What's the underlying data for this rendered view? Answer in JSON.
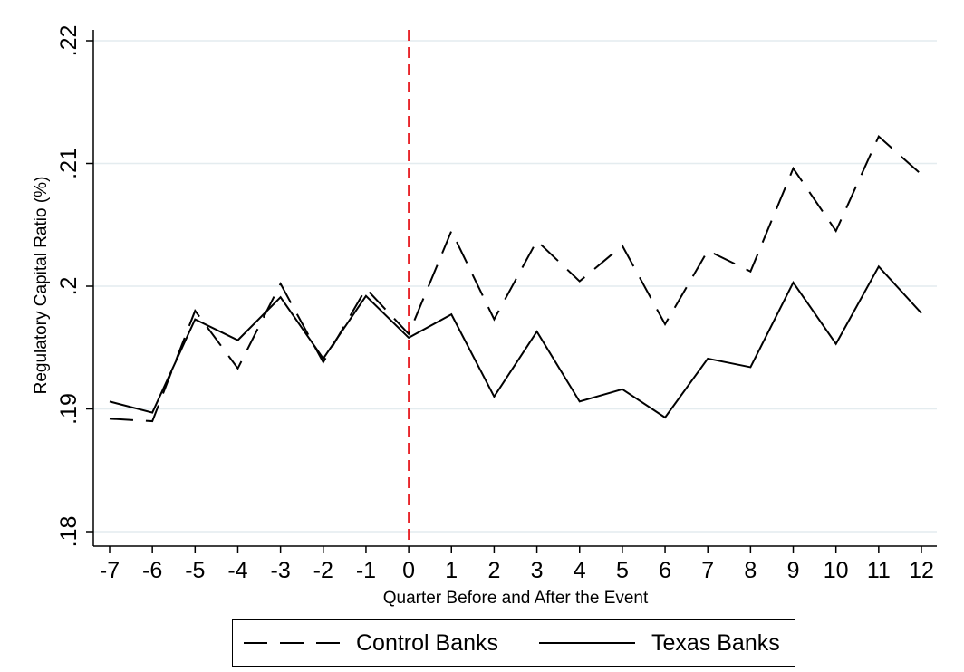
{
  "chart_data": {
    "type": "line",
    "title": "",
    "xlabel": "Quarter Before and After the Event",
    "ylabel": "Regulatory Capital Ratio (%)",
    "x": [
      -7,
      -6,
      -5,
      -4,
      -3,
      -2,
      -1,
      0,
      1,
      2,
      3,
      4,
      5,
      6,
      7,
      8,
      9,
      10,
      11,
      12
    ],
    "x_tick_labels": [
      "-7",
      "-6",
      "-5",
      "-4",
      "-3",
      "-2",
      "-1",
      "0",
      "1",
      "2",
      "3",
      "4",
      "5",
      "6",
      "7",
      "8",
      "9",
      "10",
      "11",
      "12"
    ],
    "xlim": [
      -7,
      12
    ],
    "ylim": [
      0.18,
      0.22
    ],
    "y_ticks": [
      0.18,
      0.19,
      0.2,
      0.21,
      0.22
    ],
    "y_tick_labels": [
      ".18",
      ".19",
      ".2",
      ".21",
      ".22"
    ],
    "grid": true,
    "event_line": {
      "x": 0,
      "color": "#e8252a",
      "style": "dashed"
    },
    "legend_position": "bottom",
    "series": [
      {
        "name": "Control Banks",
        "style": "dashed",
        "color": "#000000",
        "values": [
          0.1892,
          0.189,
          0.198,
          0.1933,
          0.2002,
          0.1938,
          0.1998,
          0.1961,
          0.2045,
          0.1973,
          0.2037,
          0.2004,
          0.2033,
          0.1969,
          0.2029,
          0.2012,
          0.2096,
          0.2045,
          0.2122,
          0.2091
        ]
      },
      {
        "name": "Texas Banks",
        "style": "solid",
        "color": "#000000",
        "values": [
          0.1906,
          0.1897,
          0.1973,
          0.1956,
          0.1991,
          0.1941,
          0.1992,
          0.1958,
          0.1977,
          0.191,
          0.1963,
          0.1906,
          0.1916,
          0.1893,
          0.1941,
          0.1934,
          0.2003,
          0.1953,
          0.2016,
          0.1978
        ]
      }
    ]
  }
}
